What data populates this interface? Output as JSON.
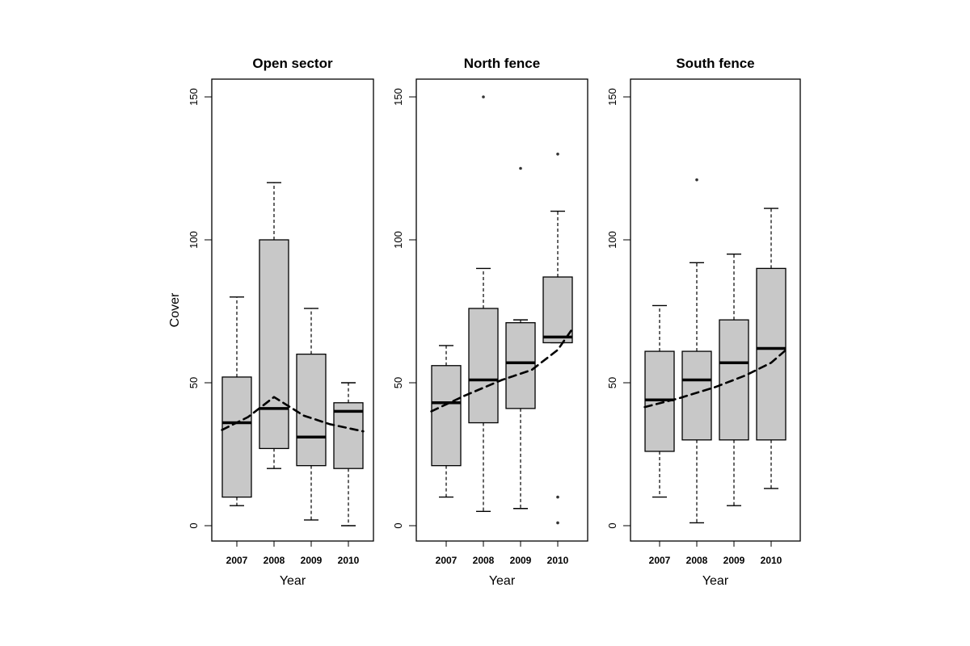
{
  "chart_data": {
    "type": "boxplot",
    "ylabel": "Cover",
    "ylim": [
      0,
      150
    ],
    "yticks": [
      0,
      50,
      100,
      150
    ],
    "categories": [
      "2007",
      "2008",
      "2009",
      "2010"
    ],
    "trend_style": "dashed",
    "panels": [
      {
        "title": "Open sector",
        "xlabel": "Year",
        "show_ylabel": true,
        "boxes": [
          {
            "category": "2007",
            "min": 7,
            "q1": 10,
            "median": 36,
            "q3": 52,
            "max": 80,
            "outliers": []
          },
          {
            "category": "2008",
            "min": 20,
            "q1": 27,
            "median": 41,
            "q3": 100,
            "max": 120,
            "outliers": []
          },
          {
            "category": "2009",
            "min": 2,
            "q1": 21,
            "median": 31,
            "q3": 60,
            "max": 76,
            "outliers": []
          },
          {
            "category": "2010",
            "min": 0,
            "q1": 20,
            "median": 40,
            "q3": 43,
            "max": 50,
            "outliers": []
          }
        ],
        "trend": [
          [
            0.6,
            33.5
          ],
          [
            1.3,
            38
          ],
          [
            2.0,
            45
          ],
          [
            2.8,
            38.5
          ],
          [
            3.5,
            35.5
          ],
          [
            4.4,
            33
          ]
        ]
      },
      {
        "title": "North fence",
        "xlabel": "Year",
        "show_ylabel": false,
        "boxes": [
          {
            "category": "2007",
            "min": 10,
            "q1": 21,
            "median": 43,
            "q3": 56,
            "max": 63,
            "outliers": []
          },
          {
            "category": "2008",
            "min": 5,
            "q1": 36,
            "median": 51,
            "q3": 76,
            "max": 90,
            "outliers": [
              150
            ]
          },
          {
            "category": "2009",
            "min": 6,
            "q1": 41,
            "median": 57,
            "q3": 71,
            "max": 72,
            "outliers": [
              125
            ]
          },
          {
            "category": "2010",
            "min": 64,
            "q1": 64,
            "median": 66,
            "q3": 87,
            "max": 110,
            "outliers": [
              130,
              10,
              1
            ]
          }
        ],
        "trend": [
          [
            0.6,
            40
          ],
          [
            1.5,
            45.5
          ],
          [
            2.5,
            51
          ],
          [
            3.3,
            54.5
          ],
          [
            4.0,
            61.5
          ],
          [
            4.4,
            69
          ]
        ]
      },
      {
        "title": "South fence",
        "xlabel": "Year",
        "show_ylabel": false,
        "boxes": [
          {
            "category": "2007",
            "min": 10,
            "q1": 26,
            "median": 44,
            "q3": 61,
            "max": 77,
            "outliers": []
          },
          {
            "category": "2008",
            "min": 1,
            "q1": 30,
            "median": 51,
            "q3": 61,
            "max": 92,
            "outliers": [
              121
            ]
          },
          {
            "category": "2009",
            "min": 7,
            "q1": 30,
            "median": 57,
            "q3": 72,
            "max": 95,
            "outliers": []
          },
          {
            "category": "2010",
            "min": 13,
            "q1": 30,
            "median": 62,
            "q3": 90,
            "max": 111,
            "outliers": []
          }
        ],
        "trend": [
          [
            0.6,
            41.5
          ],
          [
            1.5,
            44.5
          ],
          [
            2.5,
            48.5
          ],
          [
            3.3,
            52.5
          ],
          [
            4.0,
            57
          ],
          [
            4.4,
            61.5
          ]
        ]
      }
    ]
  }
}
